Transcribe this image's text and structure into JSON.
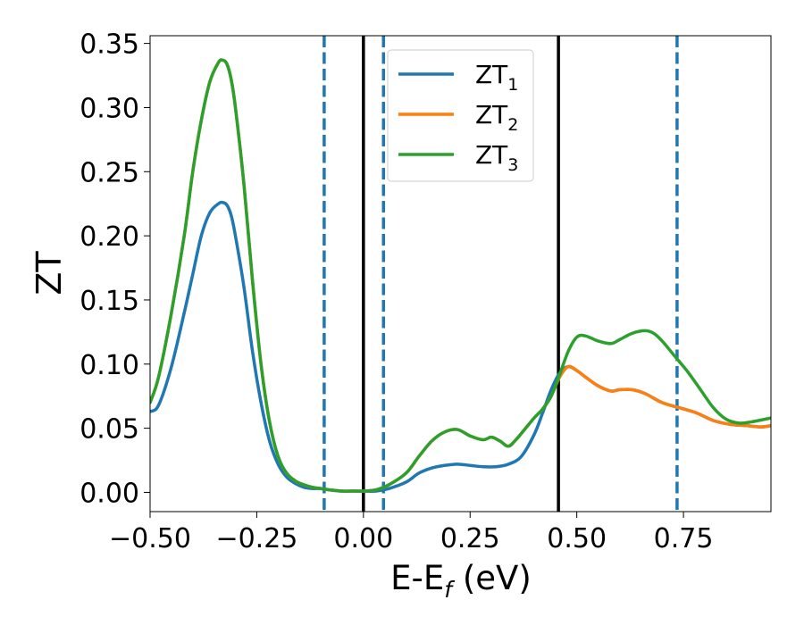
{
  "chart_data": {
    "type": "line",
    "xlabel_main": "E-E",
    "xlabel_sub": "f",
    "xlabel_unit": " (eV)",
    "ylabel": "ZT",
    "xlim": [
      -0.5,
      0.955
    ],
    "ylim": [
      -0.015,
      0.356
    ],
    "xticks": [
      {
        "value": -0.5,
        "label": "−0.50"
      },
      {
        "value": -0.25,
        "label": "−0.25"
      },
      {
        "value": 0.0,
        "label": "0.00"
      },
      {
        "value": 0.25,
        "label": "0.25"
      },
      {
        "value": 0.5,
        "label": "0.50"
      },
      {
        "value": 0.75,
        "label": "0.75"
      }
    ],
    "yticks": [
      {
        "value": 0.0,
        "label": "0.00"
      },
      {
        "value": 0.05,
        "label": "0.05"
      },
      {
        "value": 0.1,
        "label": "0.10"
      },
      {
        "value": 0.15,
        "label": "0.15"
      },
      {
        "value": 0.2,
        "label": "0.20"
      },
      {
        "value": 0.25,
        "label": "0.25"
      },
      {
        "value": 0.3,
        "label": "0.30"
      },
      {
        "value": 0.35,
        "label": "0.35"
      }
    ],
    "grid": false,
    "legend_position": "top-center",
    "vlines": [
      {
        "x": -0.092,
        "style": "dashed",
        "color": "#1f77b4"
      },
      {
        "x": 0.0,
        "style": "solid",
        "color": "#000000"
      },
      {
        "x": 0.047,
        "style": "dashed",
        "color": "#1f77b4"
      },
      {
        "x": 0.457,
        "style": "solid",
        "color": "#000000"
      },
      {
        "x": 0.735,
        "style": "dashed",
        "color": "#1f77b4"
      }
    ],
    "series": [
      {
        "name": "ZT",
        "name_sub": "1",
        "color": "#1f77b4",
        "x": [
          -0.5,
          -0.48,
          -0.45,
          -0.42,
          -0.4,
          -0.38,
          -0.36,
          -0.34,
          -0.33,
          -0.32,
          -0.31,
          -0.3,
          -0.28,
          -0.26,
          -0.24,
          -0.22,
          -0.2,
          -0.18,
          -0.16,
          -0.14,
          -0.12,
          -0.1,
          -0.08,
          -0.05,
          -0.02,
          0.0,
          0.03,
          0.06,
          0.1,
          0.13,
          0.16,
          0.19,
          0.22,
          0.25,
          0.28,
          0.31,
          0.34,
          0.37,
          0.4,
          0.42,
          0.44,
          0.46,
          0.48,
          0.5,
          0.52,
          0.55,
          0.58,
          0.6,
          0.63,
          0.66,
          0.7,
          0.74,
          0.78,
          0.82,
          0.86,
          0.9,
          0.93,
          0.955
        ],
        "values": [
          0.063,
          0.068,
          0.098,
          0.14,
          0.17,
          0.2,
          0.218,
          0.225,
          0.226,
          0.224,
          0.216,
          0.2,
          0.16,
          0.11,
          0.07,
          0.04,
          0.022,
          0.012,
          0.007,
          0.004,
          0.003,
          0.003,
          0.002,
          0.001,
          0.001,
          0.001,
          0.001,
          0.003,
          0.008,
          0.015,
          0.019,
          0.021,
          0.022,
          0.021,
          0.02,
          0.02,
          0.022,
          0.028,
          0.045,
          0.062,
          0.08,
          0.093,
          0.098,
          0.095,
          0.09,
          0.083,
          0.079,
          0.08,
          0.08,
          0.077,
          0.07,
          0.066,
          0.062,
          0.056,
          0.053,
          0.052,
          0.051,
          0.052
        ]
      },
      {
        "name": "ZT",
        "name_sub": "2",
        "color": "#ff7f0e",
        "x": [
          -0.5,
          -0.48,
          -0.45,
          -0.42,
          -0.4,
          -0.38,
          -0.36,
          -0.34,
          -0.33,
          -0.32,
          -0.31,
          -0.3,
          -0.28,
          -0.26,
          -0.24,
          -0.22,
          -0.2,
          -0.18,
          -0.16,
          -0.14,
          -0.12,
          -0.1,
          -0.08,
          -0.05,
          -0.02,
          0.0,
          0.03,
          0.06,
          0.1,
          0.13,
          0.16,
          0.19,
          0.22,
          0.25,
          0.28,
          0.3,
          0.32,
          0.34,
          0.36,
          0.38,
          0.4,
          0.42,
          0.44,
          0.46,
          0.48,
          0.5,
          0.52,
          0.55,
          0.58,
          0.6,
          0.63,
          0.66,
          0.7,
          0.74,
          0.78,
          0.82,
          0.86,
          0.9,
          0.93,
          0.955
        ],
        "values": [
          0.07,
          0.09,
          0.14,
          0.2,
          0.25,
          0.29,
          0.32,
          0.335,
          0.337,
          0.334,
          0.322,
          0.3,
          0.24,
          0.165,
          0.1,
          0.055,
          0.028,
          0.015,
          0.009,
          0.006,
          0.004,
          0.003,
          0.002,
          0.001,
          0.001,
          0.001,
          0.002,
          0.006,
          0.015,
          0.028,
          0.04,
          0.047,
          0.049,
          0.044,
          0.041,
          0.043,
          0.04,
          0.036,
          0.042,
          0.05,
          0.058,
          0.065,
          0.075,
          0.09,
          0.098,
          0.095,
          0.09,
          0.083,
          0.079,
          0.08,
          0.08,
          0.077,
          0.07,
          0.066,
          0.062,
          0.056,
          0.053,
          0.052,
          0.051,
          0.052
        ]
      },
      {
        "name": "ZT",
        "name_sub": "3",
        "color": "#2ca02c",
        "x": [
          -0.5,
          -0.48,
          -0.45,
          -0.42,
          -0.4,
          -0.38,
          -0.36,
          -0.34,
          -0.33,
          -0.32,
          -0.31,
          -0.3,
          -0.28,
          -0.26,
          -0.24,
          -0.22,
          -0.2,
          -0.18,
          -0.16,
          -0.14,
          -0.12,
          -0.1,
          -0.08,
          -0.05,
          -0.02,
          0.0,
          0.03,
          0.06,
          0.1,
          0.13,
          0.16,
          0.19,
          0.22,
          0.25,
          0.28,
          0.3,
          0.32,
          0.34,
          0.36,
          0.38,
          0.4,
          0.42,
          0.44,
          0.46,
          0.48,
          0.5,
          0.52,
          0.55,
          0.58,
          0.6,
          0.63,
          0.66,
          0.68,
          0.7,
          0.73,
          0.76,
          0.79,
          0.82,
          0.85,
          0.88,
          0.91,
          0.955
        ],
        "values": [
          0.07,
          0.09,
          0.14,
          0.2,
          0.25,
          0.29,
          0.32,
          0.335,
          0.337,
          0.334,
          0.322,
          0.3,
          0.24,
          0.165,
          0.1,
          0.055,
          0.028,
          0.015,
          0.009,
          0.006,
          0.004,
          0.003,
          0.002,
          0.001,
          0.001,
          0.001,
          0.002,
          0.006,
          0.015,
          0.028,
          0.04,
          0.047,
          0.049,
          0.044,
          0.041,
          0.043,
          0.04,
          0.036,
          0.042,
          0.05,
          0.058,
          0.065,
          0.075,
          0.092,
          0.11,
          0.121,
          0.122,
          0.118,
          0.116,
          0.119,
          0.124,
          0.126,
          0.124,
          0.118,
          0.106,
          0.094,
          0.08,
          0.066,
          0.057,
          0.054,
          0.055,
          0.058
        ]
      }
    ]
  }
}
